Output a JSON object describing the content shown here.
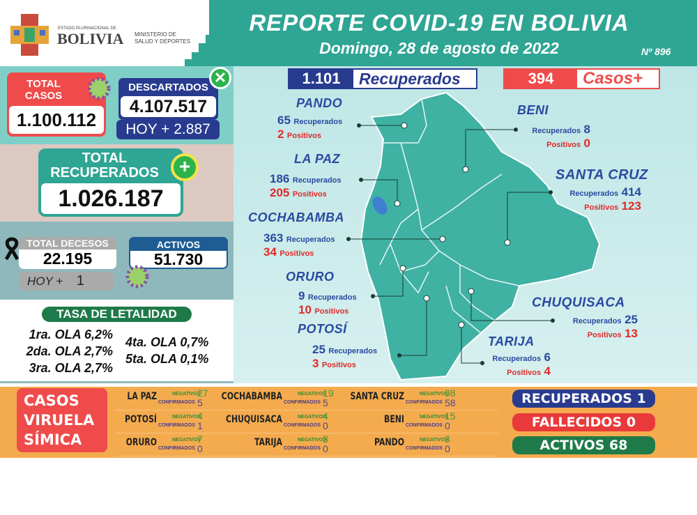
{
  "header": {
    "logo_small": "ESTADO PLURINACIONAL DE",
    "logo_big": "BOLIVIA",
    "ministry_line1": "MINISTERIO DE",
    "ministry_line2": "SALUD Y DEPORTES",
    "title": "REPORTE COVID-19 EN BOLIVIA",
    "date": "Domingo, 28 de agosto de 2022",
    "report_number": "Nº 896"
  },
  "totals": {
    "casos_label1": "TOTAL",
    "casos_label2": "CASOS",
    "casos_value": "1.100.112",
    "descartados_label": "DESCARTADOS",
    "descartados_value": "4.107.517",
    "descartados_hoy": "HOY + 2.887",
    "recuperados_label1": "TOTAL",
    "recuperados_label2": "RECUPERADOS",
    "recuperados_value": "1.026.187",
    "decesos_label": "TOTAL DECESOS",
    "decesos_value": "22.195",
    "decesos_hoy_label": "HOY +",
    "decesos_hoy_value": "1",
    "activos_label": "ACTIVOS",
    "activos_value": "51.730"
  },
  "letalidad": {
    "title": "TASA DE LETALIDAD",
    "waves": [
      "1ra. OLA 6,2%",
      "2da. OLA 2,7%",
      "3ra. OLA 2,7%",
      "4ta. OLA 0,7%",
      "5ta. OLA 0,1%"
    ]
  },
  "daily": {
    "recuperados_value": "1.101",
    "recuperados_label": "Recuperados",
    "casos_value": "394",
    "casos_label": "Casos+"
  },
  "departments": [
    {
      "name": "PANDO",
      "recuperados": "65",
      "positivos": "2"
    },
    {
      "name": "BENI",
      "recuperados": "8",
      "positivos": "0"
    },
    {
      "name": "LA PAZ",
      "recuperados": "186",
      "positivos": "205"
    },
    {
      "name": "SANTA CRUZ",
      "recuperados": "414",
      "positivos": "123"
    },
    {
      "name": "COCHABAMBA",
      "recuperados": "363",
      "positivos": "34"
    },
    {
      "name": "ORURO",
      "recuperados": "9",
      "positivos": "10"
    },
    {
      "name": "CHUQUISACA",
      "recuperados": "25",
      "positivos": "13"
    },
    {
      "name": "POTOSÍ",
      "recuperados": "25",
      "positivos": "3"
    },
    {
      "name": "TARIJA",
      "recuperados": "6",
      "positivos": "4"
    }
  ],
  "labels": {
    "recuperados": "Recuperados",
    "positivos": "Positivos"
  },
  "viruela": {
    "title1": "CASOS",
    "title2": "VIRUELA",
    "title3": "SÍMICA",
    "neg_label": "NEGATIVOS",
    "conf_label": "CONFIRMADOS",
    "rows": [
      [
        {
          "dept": "LA PAZ",
          "neg": "27",
          "conf": "5"
        },
        {
          "dept": "COCHABAMBA",
          "neg": "19",
          "conf": "5"
        },
        {
          "dept": "SANTA CRUZ",
          "neg": "98",
          "conf": "58"
        }
      ],
      [
        {
          "dept": "POTOSÍ",
          "neg": "4",
          "conf": "1"
        },
        {
          "dept": "CHUQUISACA",
          "neg": "4",
          "conf": "0"
        },
        {
          "dept": "BENI",
          "neg": "15",
          "conf": "0"
        }
      ],
      [
        {
          "dept": "ORURO",
          "neg": "7",
          "conf": "0"
        },
        {
          "dept": "TARIJA",
          "neg": "3",
          "conf": "0"
        },
        {
          "dept": "PANDO",
          "neg": "3",
          "conf": "0"
        }
      ]
    ],
    "recuperados": "RECUPERADOS 1",
    "fallecidos": "FALLECIDOS 0",
    "activos": "ACTIVOS 68"
  },
  "colors": {
    "teal": "#2fa594",
    "red": "#ef4b4b",
    "navy": "#283b8f",
    "green": "#1f7a4a",
    "orange": "#f4ab4e",
    "map": "#3fb2a4"
  }
}
